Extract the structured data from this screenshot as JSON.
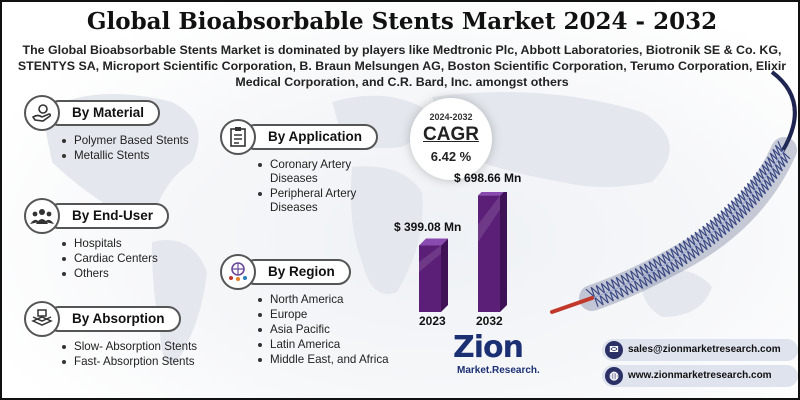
{
  "header": {
    "title": "Global Bioabsorbable Stents Market 2024 - 2032",
    "subtitle": "The Global Bioabsorbable Stents Market is dominated by players like Medtronic Plc, Abbott Laboratories, Biotronik SE & Co. KG, STENTYS SA, Microport Scientific Corporation, B. Braun Melsungen AG, Boston Scientific Corporation, Terumo Corporation, Elixir Medical Corporation, and C.R. Bard, Inc. amongst others"
  },
  "segments": [
    {
      "key": "material",
      "label": "By Material",
      "icon": "hand-coin-icon",
      "items": [
        "Polymer Based Stents",
        "Metallic Stents"
      ]
    },
    {
      "key": "end_user",
      "label": "By End-User",
      "icon": "people-group-icon",
      "items": [
        "Hospitals",
        "Cardiac Centers",
        "Others"
      ]
    },
    {
      "key": "absorption",
      "label": "By Absorption",
      "icon": "layers-box-icon",
      "items": [
        "Slow- Absorption Stents",
        "Fast- Absorption Stents"
      ]
    },
    {
      "key": "application",
      "label": "By Application",
      "icon": "clipboard-icon",
      "items": [
        "Coronary Artery Diseases",
        "Peripheral Artery Diseases"
      ]
    },
    {
      "key": "region",
      "label": "By Region",
      "icon": "globe-people-icon",
      "items": [
        "North America",
        "Europe",
        "Asia Pacific",
        "Latin America",
        "Middle East, and Africa"
      ]
    }
  ],
  "cagr": {
    "period": "2024-2032",
    "label": "CAGR",
    "value": "6.42 %"
  },
  "chart_data": {
    "type": "bar",
    "categories": [
      "2023",
      "2032"
    ],
    "values": [
      399.08,
      698.66
    ],
    "value_labels": [
      "$ 399.08 Mn",
      "$ 698.66 Mn"
    ],
    "bar_color": "#5b1f78"
  },
  "logo": {
    "name": "Zion",
    "tagline": "Market.Research."
  },
  "contacts": {
    "email": {
      "icon": "envelope-icon",
      "text": "sales@zionmarketresearch.com"
    },
    "website": {
      "icon": "globe-icon",
      "text": "www.zionmarketresearch.com"
    }
  },
  "colors": {
    "accent": "#5b1f78",
    "brand": "#1b2f73",
    "stent_wire": "#2f3a66"
  }
}
